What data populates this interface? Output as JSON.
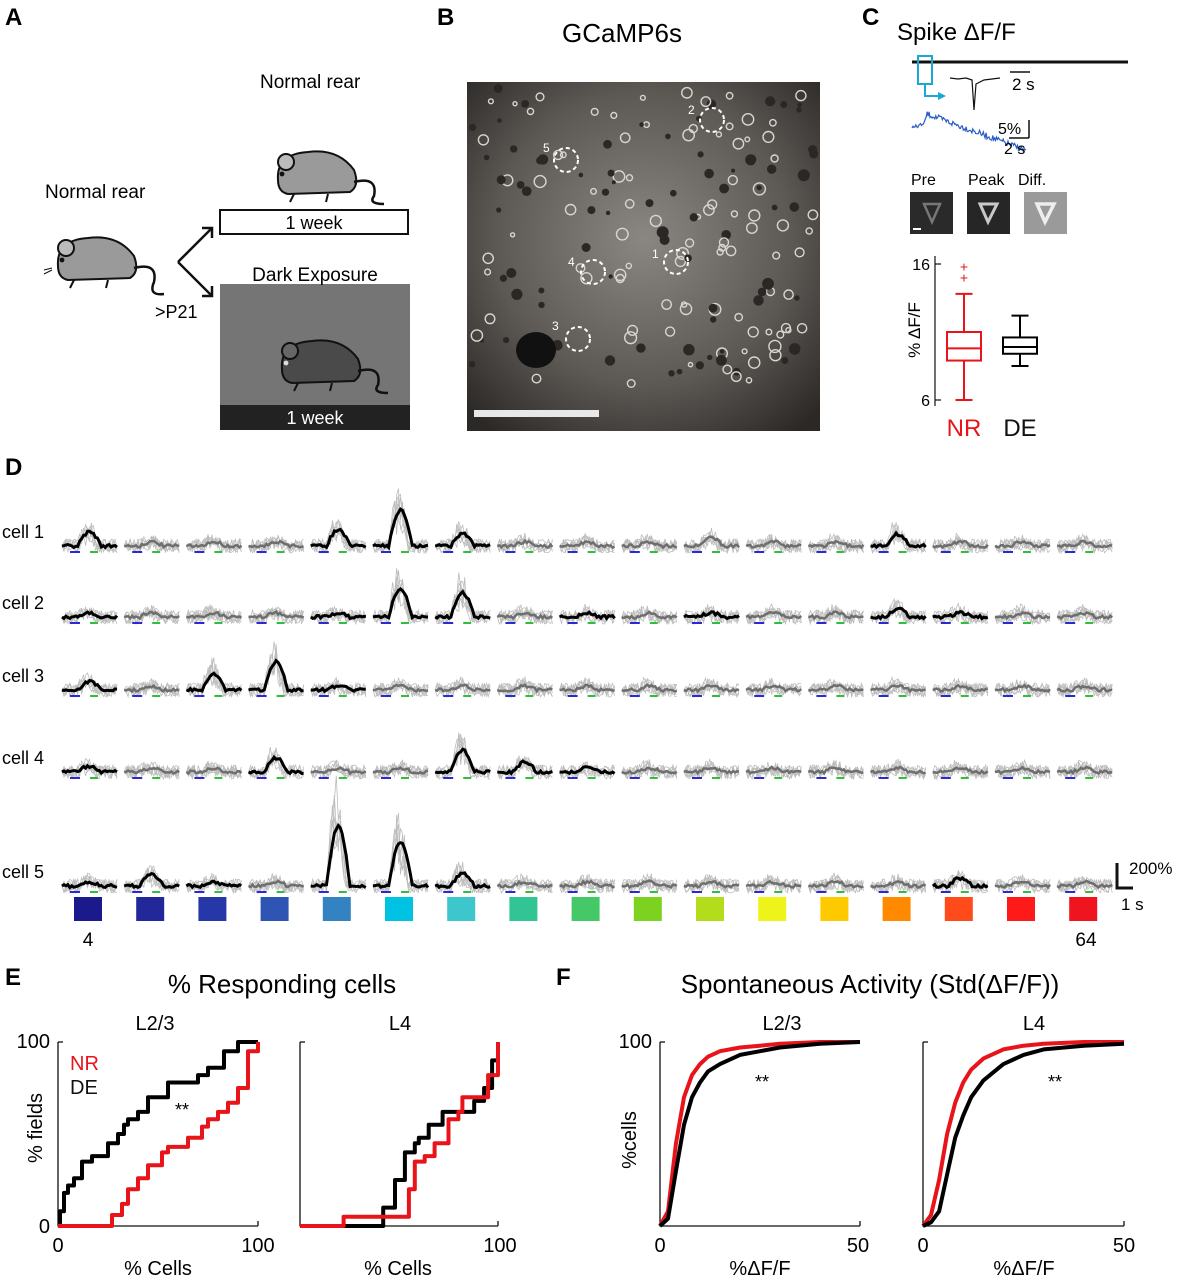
{
  "panelA": {
    "letter": "A",
    "normal_rear_left": "Normal rear",
    "normal_rear_top": "Normal rear",
    "age": ">P21",
    "week_top": "1 week",
    "dark_exposure": "Dark Exposure",
    "week_bottom": "1 week"
  },
  "panelB": {
    "letter": "B",
    "title": "GCaMP6s",
    "rois": [
      "1",
      "2",
      "3",
      "4",
      "5"
    ]
  },
  "panelC": {
    "letter": "C",
    "title": "Spike ΔF/F",
    "scale_time_top": "2 s",
    "scale_pct": "5%",
    "scale_time_bottom": "2 s",
    "img_labels": [
      "Pre",
      "Peak",
      "Diff."
    ],
    "ylabel": "% ΔF/F",
    "yticks": [
      "16",
      "6"
    ],
    "groups": [
      "NR",
      "DE"
    ]
  },
  "panelD": {
    "letter": "D",
    "cells": [
      "cell 1",
      "cell 2",
      "cell 3",
      "cell 4",
      "cell 5"
    ],
    "scale_amp": "200%",
    "scale_time": "1 s",
    "first_label": "4",
    "last_label": "64",
    "stim_colors": [
      "#1a1a8c",
      "#22289a",
      "#2638a8",
      "#2f55b4",
      "#3383c2",
      "#00c3e3",
      "#3dc7cd",
      "#33c495",
      "#45c968",
      "#7cd21e",
      "#b3dc1a",
      "#eef41a",
      "#ffc900",
      "#ff8a00",
      "#ff4a1a",
      "#ff1a1a",
      "#f0141e"
    ],
    "black_traces": [
      [
        1,
        0,
        0,
        0,
        1,
        1,
        1,
        0,
        0,
        0,
        0,
        0,
        0,
        1,
        0,
        0,
        0
      ],
      [
        1,
        0,
        0,
        0,
        1,
        1,
        1,
        0,
        1,
        0,
        1,
        0,
        0,
        1,
        1,
        0,
        0
      ],
      [
        1,
        0,
        1,
        1,
        1,
        0,
        0,
        0,
        0,
        0,
        0,
        0,
        0,
        0,
        0,
        0,
        0
      ],
      [
        1,
        0,
        0,
        1,
        0,
        0,
        1,
        1,
        1,
        0,
        0,
        0,
        0,
        0,
        0,
        0,
        0
      ],
      [
        1,
        1,
        1,
        0,
        1,
        1,
        1,
        0,
        0,
        0,
        0,
        0,
        0,
        0,
        1,
        0,
        0
      ]
    ],
    "peaks": [
      [
        0.35,
        0.1,
        0.1,
        0.1,
        0.4,
        0.9,
        0.3,
        0.1,
        0.1,
        0.1,
        0.2,
        0.1,
        0.1,
        0.3,
        0.1,
        0.1,
        0.1
      ],
      [
        0.1,
        0.1,
        0.1,
        0.1,
        0.1,
        0.7,
        0.6,
        0.1,
        0.1,
        0.1,
        0.1,
        0.1,
        0.1,
        0.2,
        0.1,
        0.1,
        0.1
      ],
      [
        0.2,
        0.1,
        0.4,
        0.7,
        0.1,
        0.1,
        0.1,
        0.1,
        0.1,
        0.1,
        0.1,
        0.1,
        0.1,
        0.1,
        0.1,
        0.1,
        0.1
      ],
      [
        0.15,
        0.1,
        0.1,
        0.35,
        0.1,
        0.1,
        0.55,
        0.25,
        0.1,
        0.1,
        0.1,
        0.1,
        0.1,
        0.1,
        0.1,
        0.1,
        0.1
      ],
      [
        0.1,
        0.3,
        0.1,
        0.1,
        1.5,
        1.1,
        0.3,
        0.1,
        0.1,
        0.1,
        0.1,
        0.1,
        0.1,
        0.1,
        0.2,
        0.1,
        0.1
      ]
    ]
  },
  "panelE": {
    "letter": "E",
    "title": "% Responding cells",
    "subplots": [
      "L2/3",
      "L4"
    ],
    "ylabel": "% fields",
    "xlabel": "% Cells",
    "xticks": [
      "0",
      "100"
    ],
    "yticks": [
      "0",
      "100"
    ],
    "legend": [
      {
        "label": "NR",
        "color": "#e8141a"
      },
      {
        "label": "DE",
        "color": "#000000"
      }
    ],
    "significance": "**"
  },
  "panelF": {
    "letter": "F",
    "title": "Spontaneous Activity (Std(ΔF/F))",
    "subplots": [
      "L2/3",
      "L4"
    ],
    "ylabel": "%cells",
    "xlabel": "%ΔF/F",
    "xticks": [
      "0",
      "50"
    ],
    "ytick": "100",
    "significance": "**"
  },
  "chart_data": [
    {
      "type": "box",
      "title": "Spike ΔF/F",
      "ylabel": "% ΔF/F",
      "categories": [
        "NR",
        "DE"
      ],
      "ylim": [
        6,
        16
      ],
      "series": [
        {
          "name": "NR",
          "whisker_low": 6,
          "q1": 8.9,
          "median": 9.8,
          "q3": 11.0,
          "whisker_high": 13.8,
          "outliers": [
            15.0,
            15.8
          ],
          "color": "#e8141a"
        },
        {
          "name": "DE",
          "whisker_low": 8.5,
          "q1": 9.4,
          "median": 9.9,
          "q3": 10.6,
          "whisker_high": 12.2,
          "outliers": [],
          "color": "#000000"
        }
      ]
    },
    {
      "type": "line",
      "title": "% Responding cells",
      "subtitle": "L2/3",
      "xlabel": "% Cells",
      "ylabel": "% fields",
      "xlim": [
        0,
        100
      ],
      "ylim": [
        0,
        100
      ],
      "series": [
        {
          "name": "DE",
          "color": "#000000",
          "x": [
            0,
            1,
            3,
            5,
            8,
            12,
            14,
            17,
            22,
            25,
            30,
            33,
            35,
            40,
            45,
            50,
            55,
            62,
            70,
            75,
            83,
            90,
            100
          ],
          "y": [
            0,
            8,
            18,
            22,
            26,
            35,
            35,
            38,
            38,
            45,
            50,
            55,
            58,
            62,
            70,
            70,
            78,
            78,
            82,
            86,
            95,
            100,
            100
          ]
        },
        {
          "name": "NR",
          "color": "#e8141a",
          "x": [
            0,
            25,
            27,
            32,
            35,
            40,
            45,
            52,
            55,
            60,
            65,
            72,
            75,
            80,
            83,
            85,
            90,
            95,
            100
          ],
          "y": [
            0,
            0,
            6,
            12,
            20,
            26,
            33,
            40,
            43,
            43,
            48,
            54,
            58,
            62,
            62,
            67,
            75,
            95,
            100
          ]
        }
      ]
    },
    {
      "type": "line",
      "title": "% Responding cells",
      "subtitle": "L4",
      "xlabel": "% Cells",
      "xlim": [
        0,
        100
      ],
      "ylim": [
        0,
        100
      ],
      "series": [
        {
          "name": "DE",
          "color": "#000000",
          "x": [
            0,
            40,
            42,
            48,
            53,
            58,
            60,
            65,
            72,
            78,
            82,
            88,
            93,
            97,
            100
          ],
          "y": [
            0,
            0,
            10,
            25,
            40,
            45,
            48,
            55,
            62,
            62,
            62,
            68,
            75,
            90,
            100
          ]
        },
        {
          "name": "NR",
          "color": "#e8141a",
          "x": [
            0,
            20,
            22,
            50,
            55,
            58,
            63,
            68,
            75,
            80,
            82,
            88,
            95,
            100
          ],
          "y": [
            0,
            0,
            5,
            5,
            20,
            35,
            38,
            45,
            58,
            62,
            70,
            70,
            82,
            100
          ]
        }
      ]
    },
    {
      "type": "line",
      "title": "Spontaneous Activity (Std(ΔF/F))",
      "subtitle": "L2/3",
      "xlabel": "%ΔF/F",
      "ylabel": "%cells",
      "xlim": [
        0,
        50
      ],
      "ylim": [
        0,
        100
      ],
      "series": [
        {
          "name": "NR",
          "color": "#e8141a",
          "x": [
            0,
            2,
            4,
            6,
            8,
            10,
            12,
            15,
            20,
            25,
            30,
            40,
            50
          ],
          "y": [
            0,
            8,
            45,
            70,
            82,
            88,
            92,
            95,
            97,
            98,
            99,
            100,
            100
          ]
        },
        {
          "name": "DE",
          "color": "#000000",
          "x": [
            0,
            2,
            4,
            6,
            8,
            10,
            12,
            15,
            20,
            25,
            30,
            40,
            50
          ],
          "y": [
            0,
            4,
            30,
            55,
            70,
            78,
            84,
            88,
            93,
            95,
            97,
            99,
            100
          ]
        }
      ]
    },
    {
      "type": "line",
      "title": "Spontaneous Activity (Std(ΔF/F))",
      "subtitle": "L4",
      "xlabel": "%ΔF/F",
      "xlim": [
        0,
        50
      ],
      "ylim": [
        0,
        100
      ],
      "series": [
        {
          "name": "NR",
          "color": "#e8141a",
          "x": [
            0,
            2,
            4,
            6,
            8,
            10,
            12,
            15,
            20,
            25,
            30,
            40,
            50
          ],
          "y": [
            0,
            6,
            25,
            50,
            67,
            78,
            85,
            91,
            96,
            98,
            99,
            100,
            100
          ]
        },
        {
          "name": "DE",
          "color": "#000000",
          "x": [
            0,
            2,
            4,
            6,
            8,
            10,
            12,
            15,
            20,
            25,
            30,
            40,
            50
          ],
          "y": [
            0,
            2,
            8,
            28,
            48,
            60,
            70,
            79,
            88,
            93,
            96,
            98,
            99
          ]
        }
      ]
    }
  ]
}
